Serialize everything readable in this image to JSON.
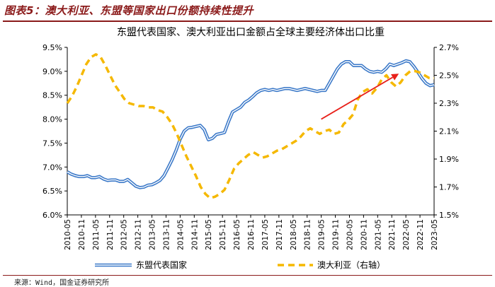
{
  "figure_title": "图表5：澳大利亚、东盟等国家出口份额持续性提升",
  "source": "来源：Wind，国金证券研究所",
  "colors": {
    "asean": "#3a78c8",
    "australia": "#f5b800",
    "arrow": "#e8201a",
    "title_red": "#8b1a1a"
  },
  "chart_data": {
    "type": "line",
    "title": "东盟代表国家、澳大利亚出口金额占全球主要经济体出口比重",
    "xlabel": "",
    "ylabel": "",
    "y_left": {
      "min": 6.0,
      "max": 9.5,
      "ticks": [
        "6.0%",
        "6.5%",
        "7.0%",
        "7.5%",
        "8.0%",
        "8.5%",
        "9.0%",
        "9.5%"
      ]
    },
    "y_right": {
      "min": 1.5,
      "max": 2.7,
      "ticks": [
        "1.5%",
        "1.7%",
        "1.9%",
        "2.1%",
        "2.3%",
        "2.5%",
        "2.7%"
      ]
    },
    "x_ticks": [
      "2010-05",
      "2010-11",
      "2011-05",
      "2011-11",
      "2012-05",
      "2012-11",
      "2013-05",
      "2013-11",
      "2014-05",
      "2014-11",
      "2015-05",
      "2015-11",
      "2016-05",
      "2016-11",
      "2017-05",
      "2017-11",
      "2018-05",
      "2018-11",
      "2019-05",
      "2019-11",
      "2020-05",
      "2020-11",
      "2021-05",
      "2021-11",
      "2022-05",
      "2022-11",
      "2023-05"
    ],
    "legend_position": "bottom",
    "series": [
      {
        "name": "东盟代表国家",
        "axis": "left",
        "style": "solid",
        "values": [
          6.9,
          6.85,
          6.82,
          6.8,
          6.8,
          6.82,
          6.78,
          6.78,
          6.8,
          6.75,
          6.72,
          6.73,
          6.73,
          6.7,
          6.7,
          6.74,
          6.67,
          6.6,
          6.57,
          6.58,
          6.62,
          6.63,
          6.67,
          6.72,
          6.82,
          6.98,
          7.15,
          7.35,
          7.58,
          7.75,
          7.82,
          7.83,
          7.85,
          7.87,
          7.78,
          7.57,
          7.6,
          7.68,
          7.7,
          7.72,
          7.95,
          8.15,
          8.2,
          8.25,
          8.35,
          8.4,
          8.47,
          8.55,
          8.6,
          8.62,
          8.6,
          8.62,
          8.6,
          8.62,
          8.64,
          8.64,
          8.62,
          8.6,
          8.62,
          8.64,
          8.62,
          8.6,
          8.58,
          8.6,
          8.6,
          8.75,
          8.9,
          9.05,
          9.15,
          9.2,
          9.2,
          9.12,
          9.12,
          9.12,
          9.05,
          9.0,
          8.98,
          9.0,
          8.98,
          9.05,
          9.15,
          9.12,
          9.15,
          9.18,
          9.22,
          9.2,
          9.1,
          8.98,
          8.85,
          8.75,
          8.7,
          8.72
        ]
      },
      {
        "name": "澳大利亚（右轴）",
        "axis": "right",
        "style": "dashed",
        "values": [
          2.3,
          2.35,
          2.42,
          2.5,
          2.58,
          2.63,
          2.65,
          2.63,
          2.57,
          2.5,
          2.43,
          2.38,
          2.33,
          2.3,
          2.29,
          2.28,
          2.28,
          2.27,
          2.27,
          2.25,
          2.24,
          2.2,
          2.15,
          2.08,
          2.0,
          1.92,
          1.85,
          1.78,
          1.7,
          1.65,
          1.62,
          1.63,
          1.65,
          1.68,
          1.75,
          1.83,
          1.87,
          1.9,
          1.93,
          1.95,
          1.93,
          1.91,
          1.92,
          1.94,
          1.96,
          1.97,
          1.99,
          2.01,
          2.03,
          2.06,
          2.1,
          2.12,
          2.1,
          2.08,
          2.1,
          2.11,
          2.08,
          2.09,
          2.15,
          2.18,
          2.22,
          2.33,
          2.38,
          2.4,
          2.37,
          2.41,
          2.47,
          2.5,
          2.45,
          2.42,
          2.45,
          2.5,
          2.53,
          2.53,
          2.52,
          2.5,
          2.48,
          2.48
        ]
      }
    ],
    "annotations": [
      {
        "type": "arrow",
        "color": "red",
        "from_date": "2019-05",
        "from_value_left": 8.0,
        "to_date": "2022-02",
        "to_value_left": 8.95
      }
    ]
  }
}
